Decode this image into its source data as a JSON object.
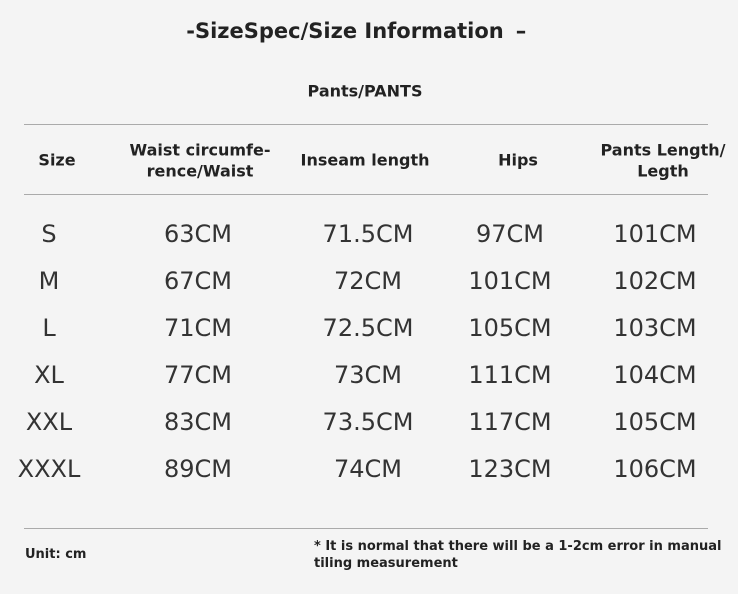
{
  "header": {
    "title": "-SizeSpec/Size Information",
    "suffix": "–",
    "subtitle": "Pants/PANTS"
  },
  "table": {
    "columns": [
      [
        "Size"
      ],
      [
        "Waist circumfe-",
        "rence/Waist"
      ],
      [
        "Inseam length"
      ],
      [
        "Hips"
      ],
      [
        "Pants Length/",
        "Legth"
      ]
    ],
    "rows": [
      [
        "S",
        "63CM",
        "71.5CM",
        "97CM",
        "101CM"
      ],
      [
        "M",
        "67CM",
        "72CM",
        "101CM",
        "102CM"
      ],
      [
        "L",
        "71CM",
        "72.5CM",
        "105CM",
        "103CM"
      ],
      [
        "XL",
        "77CM",
        "73CM",
        "111CM",
        "104CM"
      ],
      [
        "XXL",
        "83CM",
        "73.5CM",
        "117CM",
        "105CM"
      ],
      [
        "XXXL",
        "89CM",
        "74CM",
        "123CM",
        "106CM"
      ]
    ]
  },
  "footer": {
    "unit": "Unit: cm",
    "note": "* It is normal that there will be a 1-2cm error in manual tiling measurement"
  }
}
